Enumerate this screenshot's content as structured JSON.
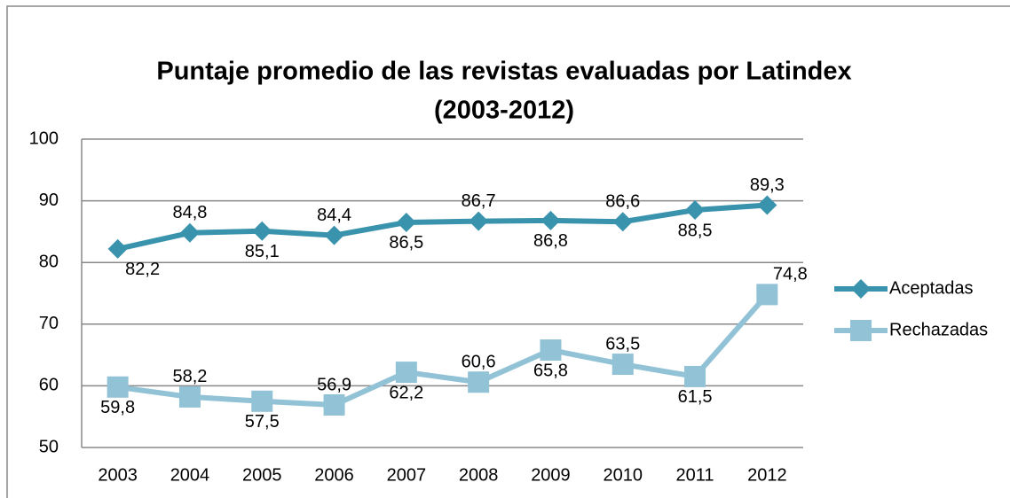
{
  "chart_data": {
    "type": "line",
    "title": [
      "Puntaje promedio de las revistas evaluadas por Latindex",
      "(2003-2012)"
    ],
    "categories": [
      "2003",
      "2004",
      "2005",
      "2006",
      "2007",
      "2008",
      "2009",
      "2010",
      "2011",
      "2012"
    ],
    "series": [
      {
        "name": "Aceptadas",
        "color": "#3a93ad",
        "marker": "diamond",
        "values": [
          82.2,
          84.8,
          85.1,
          84.4,
          86.5,
          86.7,
          86.8,
          86.6,
          88.5,
          89.3
        ],
        "value_labels": [
          "82,2",
          "84,8",
          "85,1",
          "84,4",
          "86,5",
          "86,7",
          "86,8",
          "86,6",
          "88,5",
          "89,3"
        ]
      },
      {
        "name": "Rechazadas",
        "color": "#92c2d6",
        "marker": "square",
        "values": [
          59.8,
          58.2,
          57.5,
          56.9,
          62.2,
          60.6,
          65.8,
          63.5,
          61.5,
          74.8
        ],
        "value_labels": [
          "59,8",
          "58,2",
          "57,5",
          "56,9",
          "62,2",
          "60,6",
          "65,8",
          "63,5",
          "61,5",
          "74,8"
        ]
      }
    ],
    "ylim": [
      50,
      100
    ],
    "yticks": [
      50,
      60,
      70,
      80,
      90,
      100
    ],
    "grid": true,
    "legend": "right"
  }
}
